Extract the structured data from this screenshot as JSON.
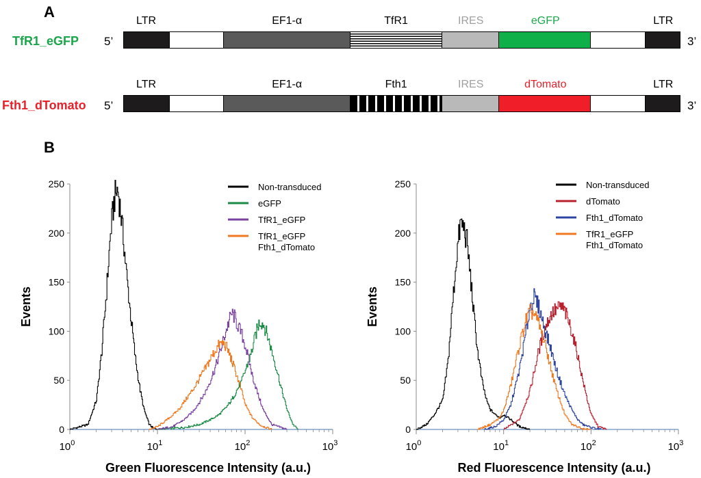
{
  "panel_a": {
    "letter": "A",
    "five_prime": "5’",
    "three_prime": "3’",
    "constructs": [
      {
        "name": "TfR1_eGFP",
        "name_color": "#1aa64a",
        "segments": [
          {
            "label": "LTR",
            "color": "#1e1b1c",
            "label_color": "#000000",
            "w": 8
          },
          {
            "label": "",
            "color": "#ffffff",
            "label_color": "#000000",
            "w": 9.5
          },
          {
            "label": "EF1-α",
            "color": "#5a5a5a",
            "label_color": "#000000",
            "w": 22
          },
          {
            "label": "TfR1",
            "color": "hstripes",
            "label_color": "#000000",
            "w": 16
          },
          {
            "label": "IRES",
            "color": "#b9b9b9",
            "label_color": "#a0a0a0",
            "w": 10
          },
          {
            "label": "eGFP",
            "color": "#0fb04a",
            "label_color": "#1aa64a",
            "w": 16
          },
          {
            "label": "",
            "color": "#ffffff",
            "label_color": "#000000",
            "w": 9.5
          },
          {
            "label": "LTR",
            "color": "#1e1b1c",
            "label_color": "#000000",
            "w": 6
          }
        ]
      },
      {
        "name": "Fth1_dTomato",
        "name_color": "#e8202a",
        "segments": [
          {
            "label": "LTR",
            "color": "#1e1b1c",
            "label_color": "#000000",
            "w": 8
          },
          {
            "label": "",
            "color": "#ffffff",
            "label_color": "#000000",
            "w": 9.5
          },
          {
            "label": "EF1-α",
            "color": "#5a5a5a",
            "label_color": "#000000",
            "w": 22
          },
          {
            "label": "Fth1",
            "color": "vstripes",
            "label_color": "#000000",
            "w": 16
          },
          {
            "label": "IRES",
            "color": "#b9b9b9",
            "label_color": "#a0a0a0",
            "w": 10
          },
          {
            "label": "dTomato",
            "color": "#f01e28",
            "label_color": "#e8202a",
            "w": 16
          },
          {
            "label": "",
            "color": "#ffffff",
            "label_color": "#000000",
            "w": 9.5
          },
          {
            "label": "LTR",
            "color": "#1e1b1c",
            "label_color": "#000000",
            "w": 6
          }
        ]
      }
    ]
  },
  "panel_b": {
    "letter": "B"
  },
  "chart_data": [
    {
      "type": "line",
      "xlabel": "Green Fluorescence Intensity (a.u.)",
      "ylabel": "Events",
      "x_scale": "log",
      "xlim": [
        1,
        1000
      ],
      "ylim": [
        0,
        250
      ],
      "x_ticks": [
        1,
        10,
        100,
        1000
      ],
      "x_tick_labels": [
        [
          "10",
          "0"
        ],
        [
          "10",
          "1"
        ],
        [
          "10",
          "2"
        ],
        [
          "10",
          "3"
        ]
      ],
      "y_ticks": [
        0,
        50,
        100,
        150,
        200,
        250
      ],
      "legend_position": "top-right",
      "series": [
        {
          "name": "Non-transduced",
          "color": "#000000",
          "x": [
            1.0,
            1.6,
            2.0,
            2.3,
            2.6,
            2.9,
            3.2,
            3.5,
            3.8,
            4.1,
            4.5,
            5.0,
            5.6,
            6.3,
            7.0,
            8.0,
            9.0,
            10.0
          ],
          "y": [
            0,
            5,
            30,
            80,
            140,
            200,
            235,
            245,
            220,
            190,
            150,
            110,
            70,
            40,
            20,
            5,
            1,
            0
          ]
        },
        {
          "name": "eGFP",
          "color": "#1a8a45",
          "x": [
            10,
            20,
            30,
            40,
            50,
            60,
            70,
            80,
            90,
            100,
            115,
            130,
            145,
            160,
            180,
            200,
            230,
            260,
            300,
            350,
            400
          ],
          "y": [
            0,
            2,
            5,
            10,
            15,
            22,
            30,
            40,
            48,
            60,
            75,
            95,
            110,
            108,
            95,
            80,
            60,
            40,
            20,
            5,
            0
          ]
        },
        {
          "name": "TfR1_eGFP",
          "color": "#7a40a0",
          "x": [
            10,
            15,
            20,
            25,
            30,
            35,
            40,
            45,
            50,
            55,
            60,
            65,
            70,
            75,
            80,
            90,
            100,
            110,
            120,
            140,
            160,
            200,
            300
          ],
          "y": [
            0,
            3,
            10,
            18,
            28,
            38,
            50,
            62,
            75,
            88,
            100,
            110,
            118,
            115,
            108,
            98,
            85,
            70,
            55,
            35,
            20,
            5,
            0
          ]
        },
        {
          "name": "TfR1_eGFP Fth1_dTomato",
          "color": "#f07820",
          "x": [
            8,
            10,
            12,
            15,
            18,
            20,
            25,
            30,
            35,
            40,
            45,
            50,
            55,
            60,
            65,
            70,
            80,
            90,
            100,
            120,
            150,
            200
          ],
          "y": [
            0,
            3,
            8,
            15,
            22,
            28,
            40,
            52,
            62,
            72,
            80,
            86,
            88,
            85,
            78,
            70,
            55,
            40,
            25,
            12,
            4,
            0
          ]
        }
      ]
    },
    {
      "type": "line",
      "xlabel": "Red Fluorescence Intensity (a.u.)",
      "ylabel": "Events",
      "x_scale": "log",
      "xlim": [
        1,
        1000
      ],
      "ylim": [
        0,
        250
      ],
      "x_ticks": [
        1,
        10,
        100,
        1000
      ],
      "x_tick_labels": [
        [
          "10",
          "0"
        ],
        [
          "10",
          "1"
        ],
        [
          "10",
          "2"
        ],
        [
          "10",
          "3"
        ]
      ],
      "y_ticks": [
        0,
        50,
        100,
        150,
        200,
        250
      ],
      "legend_position": "top-right",
      "series": [
        {
          "name": "Non-transduced",
          "color": "#000000",
          "x": [
            1.0,
            1.3,
            1.6,
            2.0,
            2.3,
            2.6,
            2.9,
            3.2,
            3.5,
            3.8,
            4.1,
            4.5,
            5.0,
            5.6,
            6.3,
            7.0,
            8.0,
            9.0,
            10,
            12,
            15,
            20
          ],
          "y": [
            0,
            5,
            15,
            30,
            70,
            130,
            180,
            210,
            205,
            190,
            160,
            120,
            80,
            50,
            30,
            20,
            15,
            12,
            15,
            10,
            3,
            0
          ]
        },
        {
          "name": "dTomato",
          "color": "#b8202e",
          "x": [
            10,
            15,
            20,
            25,
            30,
            35,
            40,
            45,
            50,
            60,
            70,
            80,
            90,
            100,
            120,
            150
          ],
          "y": [
            0,
            10,
            40,
            80,
            105,
            118,
            122,
            125,
            120,
            100,
            75,
            50,
            30,
            15,
            3,
            0
          ]
        },
        {
          "name": "Fth1_dTomato",
          "color": "#2d45a0",
          "x": [
            6,
            8,
            10,
            12,
            15,
            18,
            20,
            22,
            25,
            30,
            35,
            40,
            50,
            60,
            70,
            80,
            100,
            130
          ],
          "y": [
            0,
            3,
            10,
            25,
            60,
            100,
            125,
            135,
            125,
            100,
            80,
            60,
            35,
            20,
            10,
            5,
            2,
            0
          ]
        },
        {
          "name": "TfR1_eGFP Fth1_dTomato",
          "color": "#f07820",
          "x": [
            5,
            7,
            9,
            10,
            12,
            15,
            18,
            20,
            22,
            25,
            30,
            35,
            40,
            50,
            60,
            80,
            100
          ],
          "y": [
            0,
            5,
            12,
            20,
            45,
            85,
            112,
            120,
            118,
            108,
            85,
            60,
            40,
            15,
            5,
            1,
            0
          ]
        }
      ]
    }
  ]
}
